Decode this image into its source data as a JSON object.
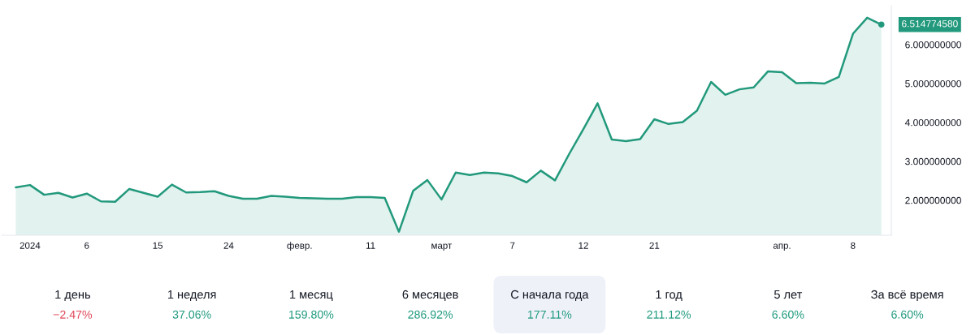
{
  "chart_data": [
    {
      "type": "area",
      "categories": [
        null,
        "2024",
        null,
        null,
        null,
        "6",
        null,
        null,
        null,
        null,
        "15",
        null,
        null,
        null,
        null,
        "24",
        null,
        null,
        null,
        null,
        "февр.",
        null,
        null,
        null,
        null,
        "11",
        null,
        null,
        null,
        null,
        "март",
        null,
        null,
        null,
        null,
        "7",
        null,
        null,
        null,
        null,
        "12",
        null,
        null,
        null,
        null,
        "21",
        null,
        null,
        null,
        null,
        null,
        null,
        null,
        null,
        "апр.",
        null,
        null,
        null,
        null,
        "8",
        null,
        null
      ],
      "values": [
        2.33,
        2.39,
        2.14,
        2.19,
        2.07,
        2.17,
        1.97,
        1.96,
        2.29,
        2.19,
        2.09,
        2.4,
        2.2,
        2.21,
        2.23,
        2.11,
        2.04,
        2.04,
        2.11,
        2.09,
        2.06,
        2.05,
        2.04,
        2.04,
        2.08,
        2.08,
        2.06,
        1.19,
        2.24,
        2.52,
        2.02,
        2.71,
        2.65,
        2.71,
        2.69,
        2.62,
        2.46,
        2.76,
        2.51,
        3.19,
        3.83,
        4.49,
        3.56,
        3.52,
        3.57,
        4.08,
        3.96,
        4.01,
        4.3,
        5.04,
        4.71,
        4.85,
        4.9,
        5.31,
        5.29,
        5.01,
        5.02,
        5.0,
        5.17,
        6.28,
        6.69,
        6.51477458
      ],
      "value_labels": [
        null,
        null,
        null,
        null,
        null,
        null,
        null,
        null,
        null,
        null,
        null,
        null,
        null,
        null,
        null,
        null,
        null,
        null,
        null,
        null,
        null,
        null,
        null,
        null,
        null,
        null,
        null,
        null,
        null,
        null,
        null,
        null,
        null,
        null,
        null,
        null,
        null,
        null,
        null,
        null,
        null,
        null,
        null,
        null,
        null,
        null,
        null,
        null,
        null,
        null,
        null,
        null,
        null,
        null,
        null,
        null,
        null,
        null,
        null,
        null,
        null,
        "6.514774580"
      ],
      "color": "#22997c",
      "ylim": [
        1.1,
        7.0
      ],
      "yticks": [
        {
          "value": 2,
          "label": "2.000000000"
        },
        {
          "value": 3,
          "label": "3.000000000"
        },
        {
          "value": 4,
          "label": "4.000000000"
        },
        {
          "value": 5,
          "label": "5.000000000"
        },
        {
          "value": 6,
          "label": "6.000000000"
        }
      ]
    },
    {
      "type": "other",
      "categories": [
        "1 день",
        "1 неделя",
        "1 месяц",
        "6 месяцев",
        "С начала года",
        "1 год",
        "5 лет",
        "За всё время"
      ],
      "values": [
        -2.47,
        37.06,
        159.8,
        286.92,
        177.11,
        211.12,
        6.6,
        6.6
      ],
      "value_labels": [
        "−2.47%",
        "37.06%",
        "159.80%",
        "286.92%",
        "177.11%",
        "211.12%",
        "6.60%",
        "6.60%"
      ]
    }
  ]
}
